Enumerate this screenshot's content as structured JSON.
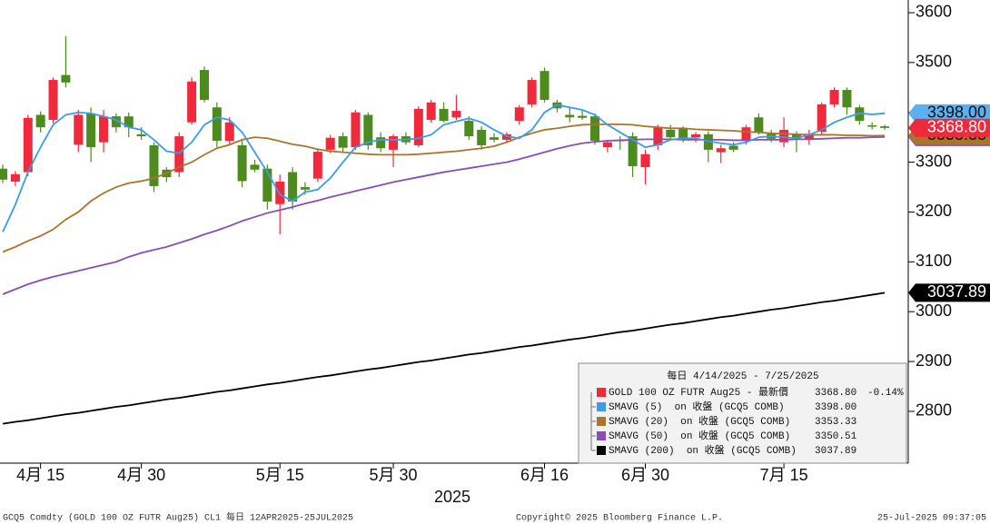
{
  "chart_data": {
    "type": "candlestick",
    "candle_name": "GOLD 100 OZ FUTR Aug25 - 最新價",
    "candle_last_label": "3368.80",
    "candle_change": "-0.14%",
    "up_color": "#ee2a3c",
    "down_color": "#4e8b1e",
    "legend_title": "每日 4/14/2025 - 7/25/2025",
    "x_label": "2025",
    "categories": [
      null,
      null,
      null,
      "4月 15",
      null,
      null,
      null,
      null,
      null,
      null,
      null,
      "4月 30",
      null,
      null,
      null,
      null,
      null,
      null,
      null,
      null,
      null,
      null,
      "5月 15",
      null,
      null,
      null,
      null,
      null,
      null,
      null,
      null,
      "5月 30",
      null,
      null,
      null,
      null,
      null,
      null,
      null,
      null,
      null,
      null,
      null,
      "6月 16",
      null,
      null,
      null,
      null,
      null,
      null,
      null,
      "6月 30",
      null,
      null,
      null,
      null,
      null,
      null,
      null,
      null,
      null,
      null,
      "7月 15",
      null,
      null,
      null,
      null,
      null,
      null,
      null,
      null
    ],
    "open": [
      3287,
      3261,
      3280,
      3395,
      3385,
      3475,
      3335,
      3398,
      3340,
      3392,
      3392,
      3356,
      3334,
      3285,
      3280,
      3380,
      3485,
      3410,
      3343,
      3334,
      3295,
      3287,
      3216,
      3280,
      3250,
      3267,
      3325,
      3352,
      3330,
      3395,
      3350,
      3325,
      3352,
      3334,
      3385,
      3407,
      3390,
      3383,
      3365,
      3350,
      3345,
      3383,
      3416,
      3483,
      3420,
      3395,
      3393,
      3392,
      3330,
      3345,
      3352,
      3290,
      3334,
      3365,
      3368,
      3350,
      3356,
      3320,
      3333,
      3343,
      3390,
      3357,
      3340,
      3357,
      3345,
      3361,
      3416,
      3445,
      3410,
      3374,
      3372
    ],
    "high": [
      3295,
      3282,
      3395,
      3402,
      3470,
      3553,
      3405,
      3410,
      3405,
      3398,
      3400,
      3370,
      3340,
      3290,
      3360,
      3470,
      3492,
      3420,
      3390,
      3345,
      3305,
      3295,
      3275,
      3290,
      3260,
      3325,
      3355,
      3360,
      3405,
      3400,
      3360,
      3356,
      3360,
      3412,
      3425,
      3420,
      3435,
      3392,
      3372,
      3358,
      3360,
      3415,
      3470,
      3490,
      3425,
      3410,
      3405,
      3398,
      3345,
      3352,
      3360,
      3325,
      3375,
      3375,
      3372,
      3360,
      3362,
      3335,
      3340,
      3375,
      3398,
      3365,
      3390,
      3362,
      3365,
      3420,
      3450,
      3450,
      3415,
      3380,
      3375
    ],
    "low": [
      3258,
      3252,
      3272,
      3360,
      3378,
      3450,
      3320,
      3300,
      3320,
      3360,
      3350,
      3345,
      3240,
      3260,
      3270,
      3375,
      3420,
      3330,
      3335,
      3250,
      3280,
      3205,
      3155,
      3205,
      3235,
      3260,
      3318,
      3320,
      3325,
      3325,
      3320,
      3290,
      3335,
      3330,
      3380,
      3380,
      3385,
      3345,
      3325,
      3340,
      3340,
      3375,
      3410,
      3420,
      3400,
      3380,
      3385,
      3335,
      3320,
      3325,
      3270,
      3255,
      3325,
      3345,
      3340,
      3340,
      3300,
      3298,
      3320,
      3335,
      3355,
      3340,
      3330,
      3320,
      3335,
      3355,
      3410,
      3395,
      3375,
      3366,
      3365
    ],
    "close": [
      3265,
      3276,
      3389,
      3370,
      3465,
      3460,
      3395,
      3330,
      3392,
      3370,
      3370,
      3352,
      3252,
      3270,
      3352,
      3462,
      3425,
      3343,
      3380,
      3262,
      3285,
      3221,
      3261,
      3221,
      3245,
      3321,
      3349,
      3329,
      3400,
      3334,
      3328,
      3352,
      3340,
      3407,
      3420,
      3383,
      3403,
      3352,
      3334,
      3345,
      3356,
      3410,
      3465,
      3425,
      3408,
      3390,
      3389,
      3343,
      3340,
      3342,
      3292,
      3316,
      3370,
      3350,
      3345,
      3356,
      3325,
      3328,
      3325,
      3370,
      3361,
      3347,
      3365,
      3348,
      3357,
      3416,
      3445,
      3410,
      3383,
      3372,
      3368.8
    ],
    "series": [
      {
        "name": "SMAVG (200)  on 收盤 (GCQ5 COMB)",
        "color": "#000000",
        "last_label": "3037.89",
        "values": [
          2775,
          2779,
          2782,
          2786,
          2790,
          2794,
          2797,
          2801,
          2805,
          2809,
          2812,
          2816,
          2820,
          2824,
          2827,
          2831,
          2835,
          2839,
          2842,
          2846,
          2850,
          2854,
          2857,
          2861,
          2865,
          2869,
          2872,
          2876,
          2880,
          2884,
          2887,
          2891,
          2895,
          2899,
          2902,
          2906,
          2910,
          2914,
          2917,
          2921,
          2925,
          2929,
          2932,
          2936,
          2940,
          2944,
          2947,
          2951,
          2955,
          2959,
          2962,
          2966,
          2970,
          2974,
          2977,
          2981,
          2985,
          2989,
          2992,
          2996,
          3000,
          3004,
          3007,
          3011,
          3015,
          3019,
          3022,
          3026,
          3030,
          3034,
          3037.89
        ]
      },
      {
        "name": "SMAVG (50)  on 收盤 (GCQ5 COMB)",
        "color": "#8a4db3",
        "last_label": "3350.51",
        "values": [
          3035,
          3045,
          3055,
          3063,
          3070,
          3076,
          3082,
          3088,
          3094,
          3100,
          3110,
          3118,
          3124,
          3130,
          3138,
          3146,
          3155,
          3163,
          3172,
          3182,
          3190,
          3198,
          3204,
          3210,
          3217,
          3223,
          3230,
          3236,
          3242,
          3248,
          3254,
          3260,
          3265,
          3270,
          3275,
          3280,
          3284,
          3288,
          3292,
          3296,
          3300,
          3306,
          3313,
          3320,
          3327,
          3333,
          3338,
          3341,
          3343,
          3344,
          3345,
          3346,
          3346,
          3346,
          3345,
          3345,
          3345,
          3345,
          3344,
          3344,
          3345,
          3345,
          3345,
          3346,
          3346,
          3347,
          3348,
          3349,
          3349,
          3350,
          3350.51
        ]
      },
      {
        "name": "SMAVG (20)  on 收盤 (GCQ5 COMB)",
        "color": "#a8752a",
        "last_label": "3353.33",
        "values": [
          3120,
          3130,
          3142,
          3152,
          3165,
          3185,
          3200,
          3222,
          3238,
          3250,
          3258,
          3262,
          3268,
          3278,
          3290,
          3300,
          3315,
          3328,
          3335,
          3345,
          3350,
          3348,
          3342,
          3336,
          3332,
          3326,
          3322,
          3320,
          3318,
          3316,
          3315,
          3315,
          3315,
          3316,
          3318,
          3320,
          3322,
          3325,
          3328,
          3332,
          3340,
          3350,
          3358,
          3365,
          3368,
          3372,
          3375,
          3376,
          3376,
          3376,
          3375,
          3372,
          3370,
          3368,
          3368,
          3366,
          3365,
          3364,
          3363,
          3361,
          3360,
          3358,
          3357,
          3356,
          3355,
          3355,
          3355,
          3354,
          3354,
          3353,
          3353.33
        ]
      },
      {
        "name": "SMAVG (5)  on 收盤 (GCQ5 COMB)",
        "color": "#3d9be9",
        "last_label": "3398.00",
        "values": [
          3160,
          3215,
          3280,
          3330,
          3375,
          3395,
          3400,
          3398,
          3392,
          3385,
          3370,
          3365,
          3345,
          3322,
          3318,
          3340,
          3375,
          3390,
          3385,
          3360,
          3320,
          3280,
          3235,
          3222,
          3240,
          3245,
          3268,
          3300,
          3330,
          3340,
          3345,
          3345,
          3345,
          3348,
          3355,
          3375,
          3382,
          3388,
          3380,
          3365,
          3352,
          3348,
          3365,
          3400,
          3415,
          3410,
          3405,
          3395,
          3375,
          3360,
          3345,
          3330,
          3335,
          3345,
          3348,
          3348,
          3342,
          3338,
          3335,
          3340,
          3350,
          3352,
          3350,
          3348,
          3355,
          3365,
          3380,
          3390,
          3398,
          3396,
          3398
        ]
      }
    ],
    "ylim": [
      2696,
      3625.5
    ],
    "yticks": [
      2800,
      2900,
      3000,
      3100,
      3200,
      3300,
      3400,
      3500,
      3600
    ]
  },
  "footer": {
    "left": "GCQ5 Comdty (GOLD 100 OZ FUTR  Aug25) CL1  每日 12APR2025-25JUL2025",
    "center": "Copyright© 2025 Bloomberg Finance L.P.",
    "right": "25-Jul-2025 09:37:05"
  }
}
